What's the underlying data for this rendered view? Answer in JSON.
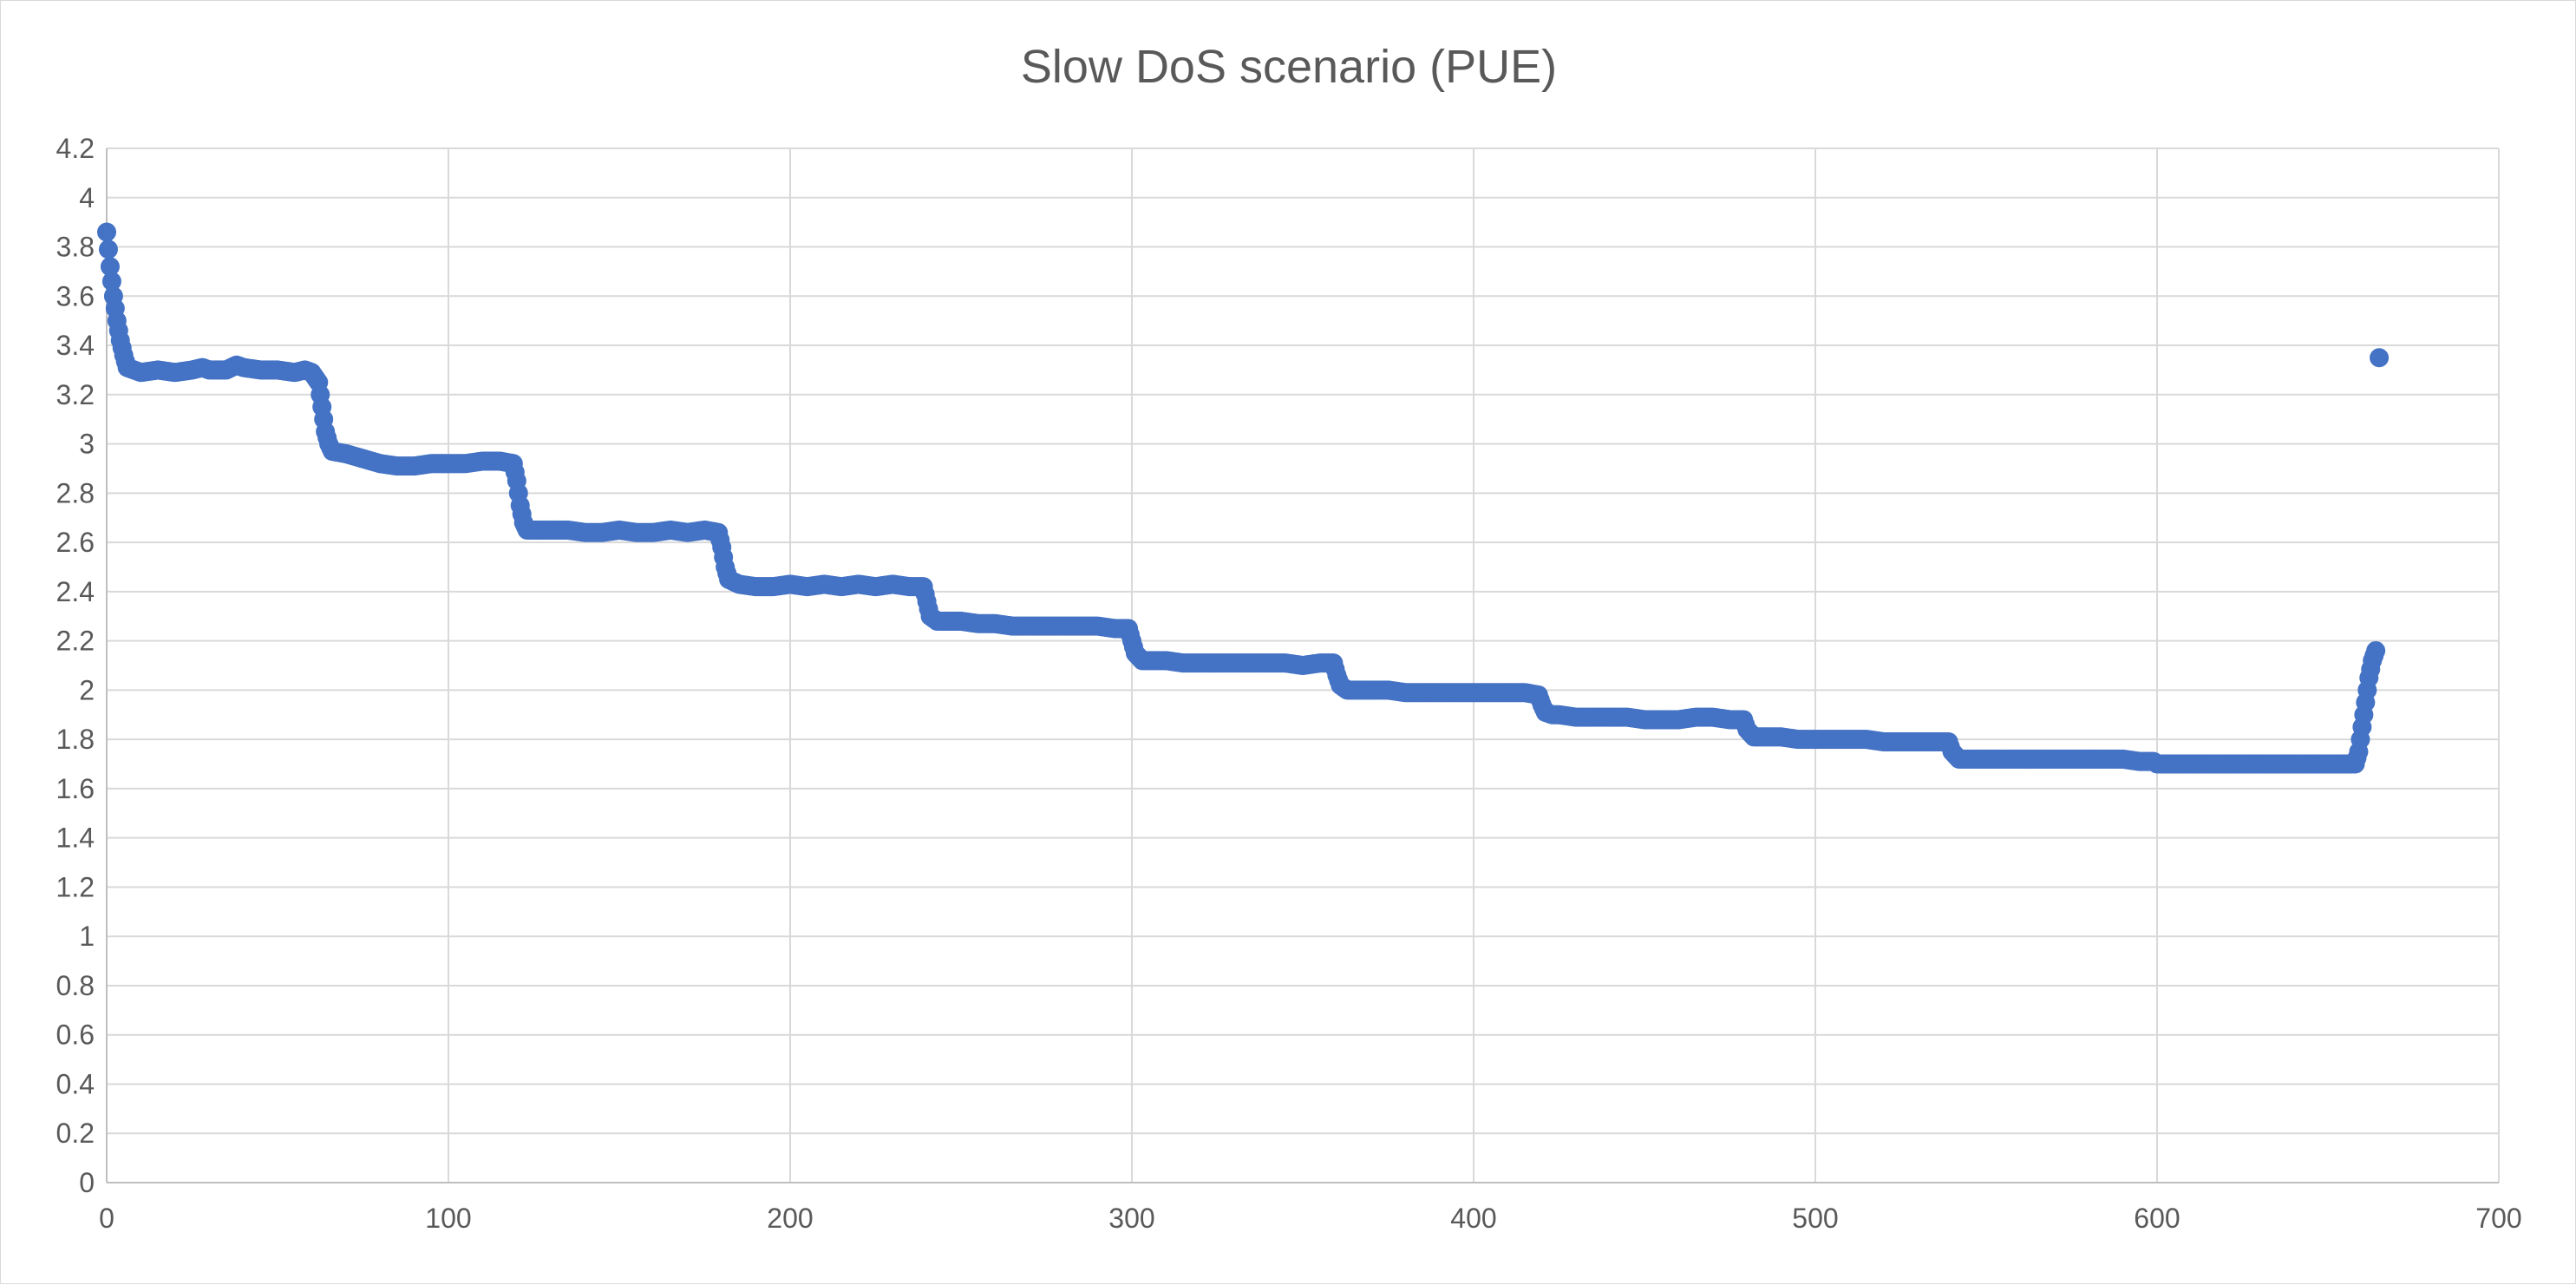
{
  "chart_data": {
    "type": "scatter",
    "title": "Slow DoS scenario (PUE)",
    "xlabel": "",
    "ylabel": "",
    "xlim": [
      0,
      700
    ],
    "ylim": [
      0,
      4.2
    ],
    "x_ticks": [
      0,
      100,
      200,
      300,
      400,
      500,
      600,
      700
    ],
    "y_ticks": [
      0,
      0.2,
      0.4,
      0.6,
      0.8,
      1,
      1.2,
      1.4,
      1.6,
      1.8,
      2,
      2.2,
      2.4,
      2.6,
      2.8,
      3,
      3.2,
      3.4,
      3.6,
      3.8,
      4,
      4.2
    ],
    "grid": true,
    "legend": "none",
    "marker_color": "#4472C4",
    "series": [
      {
        "points": [
          [
            0,
            3.86
          ],
          [
            1,
            3.72
          ],
          [
            2,
            3.6
          ],
          [
            3,
            3.5
          ],
          [
            4,
            3.42
          ],
          [
            5,
            3.36
          ],
          [
            6,
            3.31
          ],
          [
            8,
            3.3
          ],
          [
            10,
            3.29
          ],
          [
            15,
            3.3
          ],
          [
            20,
            3.29
          ],
          [
            25,
            3.3
          ],
          [
            28,
            3.31
          ],
          [
            30,
            3.3
          ],
          [
            35,
            3.3
          ],
          [
            38,
            3.32
          ],
          [
            40,
            3.31
          ],
          [
            45,
            3.3
          ],
          [
            50,
            3.3
          ],
          [
            55,
            3.29
          ],
          [
            58,
            3.3
          ],
          [
            60,
            3.29
          ],
          [
            62,
            3.25
          ],
          [
            63,
            3.15
          ],
          [
            64,
            3.05
          ],
          [
            65,
            3.0
          ],
          [
            66,
            2.97
          ],
          [
            70,
            2.96
          ],
          [
            75,
            2.94
          ],
          [
            80,
            2.92
          ],
          [
            85,
            2.91
          ],
          [
            90,
            2.91
          ],
          [
            95,
            2.92
          ],
          [
            100,
            2.92
          ],
          [
            105,
            2.92
          ],
          [
            110,
            2.93
          ],
          [
            115,
            2.93
          ],
          [
            119,
            2.92
          ],
          [
            120,
            2.85
          ],
          [
            121,
            2.75
          ],
          [
            122,
            2.68
          ],
          [
            123,
            2.65
          ],
          [
            125,
            2.65
          ],
          [
            130,
            2.65
          ],
          [
            135,
            2.65
          ],
          [
            140,
            2.64
          ],
          [
            145,
            2.64
          ],
          [
            150,
            2.65
          ],
          [
            155,
            2.64
          ],
          [
            160,
            2.64
          ],
          [
            165,
            2.65
          ],
          [
            170,
            2.64
          ],
          [
            175,
            2.65
          ],
          [
            179,
            2.64
          ],
          [
            180,
            2.58
          ],
          [
            181,
            2.5
          ],
          [
            182,
            2.45
          ],
          [
            185,
            2.43
          ],
          [
            190,
            2.42
          ],
          [
            195,
            2.42
          ],
          [
            200,
            2.43
          ],
          [
            205,
            2.42
          ],
          [
            210,
            2.43
          ],
          [
            215,
            2.42
          ],
          [
            220,
            2.43
          ],
          [
            225,
            2.42
          ],
          [
            230,
            2.43
          ],
          [
            235,
            2.42
          ],
          [
            239,
            2.42
          ],
          [
            240,
            2.36
          ],
          [
            241,
            2.3
          ],
          [
            243,
            2.28
          ],
          [
            245,
            2.28
          ],
          [
            250,
            2.28
          ],
          [
            255,
            2.27
          ],
          [
            260,
            2.27
          ],
          [
            265,
            2.26
          ],
          [
            270,
            2.26
          ],
          [
            275,
            2.26
          ],
          [
            280,
            2.26
          ],
          [
            285,
            2.26
          ],
          [
            290,
            2.26
          ],
          [
            295,
            2.25
          ],
          [
            299,
            2.25
          ],
          [
            300,
            2.2
          ],
          [
            301,
            2.15
          ],
          [
            303,
            2.12
          ],
          [
            305,
            2.12
          ],
          [
            310,
            2.12
          ],
          [
            315,
            2.11
          ],
          [
            320,
            2.11
          ],
          [
            325,
            2.11
          ],
          [
            330,
            2.11
          ],
          [
            335,
            2.11
          ],
          [
            340,
            2.11
          ],
          [
            345,
            2.11
          ],
          [
            350,
            2.1
          ],
          [
            355,
            2.11
          ],
          [
            359,
            2.11
          ],
          [
            360,
            2.06
          ],
          [
            361,
            2.02
          ],
          [
            363,
            2.0
          ],
          [
            365,
            2.0
          ],
          [
            370,
            2.0
          ],
          [
            375,
            2.0
          ],
          [
            380,
            1.99
          ],
          [
            385,
            1.99
          ],
          [
            390,
            1.99
          ],
          [
            395,
            1.99
          ],
          [
            400,
            1.99
          ],
          [
            405,
            1.99
          ],
          [
            410,
            1.99
          ],
          [
            415,
            1.99
          ],
          [
            419,
            1.98
          ],
          [
            420,
            1.94
          ],
          [
            421,
            1.91
          ],
          [
            423,
            1.9
          ],
          [
            425,
            1.9
          ],
          [
            430,
            1.89
          ],
          [
            435,
            1.89
          ],
          [
            440,
            1.89
          ],
          [
            445,
            1.89
          ],
          [
            450,
            1.88
          ],
          [
            455,
            1.88
          ],
          [
            460,
            1.88
          ],
          [
            465,
            1.89
          ],
          [
            470,
            1.89
          ],
          [
            475,
            1.88
          ],
          [
            479,
            1.88
          ],
          [
            480,
            1.84
          ],
          [
            482,
            1.81
          ],
          [
            485,
            1.81
          ],
          [
            490,
            1.81
          ],
          [
            495,
            1.8
          ],
          [
            500,
            1.8
          ],
          [
            505,
            1.8
          ],
          [
            510,
            1.8
          ],
          [
            515,
            1.8
          ],
          [
            520,
            1.79
          ],
          [
            525,
            1.79
          ],
          [
            530,
            1.79
          ],
          [
            535,
            1.79
          ],
          [
            539,
            1.79
          ],
          [
            540,
            1.75
          ],
          [
            542,
            1.72
          ],
          [
            545,
            1.72
          ],
          [
            550,
            1.72
          ],
          [
            555,
            1.72
          ],
          [
            560,
            1.72
          ],
          [
            565,
            1.72
          ],
          [
            570,
            1.72
          ],
          [
            575,
            1.72
          ],
          [
            580,
            1.72
          ],
          [
            585,
            1.72
          ],
          [
            590,
            1.72
          ],
          [
            595,
            1.71
          ],
          [
            599,
            1.71
          ],
          [
            600,
            1.7
          ],
          [
            605,
            1.7
          ],
          [
            610,
            1.7
          ],
          [
            615,
            1.7
          ],
          [
            620,
            1.7
          ],
          [
            625,
            1.7
          ],
          [
            630,
            1.7
          ],
          [
            635,
            1.7
          ],
          [
            640,
            1.7
          ],
          [
            645,
            1.7
          ],
          [
            650,
            1.7
          ],
          [
            655,
            1.7
          ],
          [
            658,
            1.7
          ],
          [
            659,
            1.75
          ],
          [
            660,
            1.85
          ],
          [
            661,
            1.95
          ],
          [
            662,
            2.05
          ],
          [
            663,
            2.12
          ],
          [
            664,
            2.16
          ],
          [
            665,
            3.35
          ]
        ]
      }
    ]
  }
}
